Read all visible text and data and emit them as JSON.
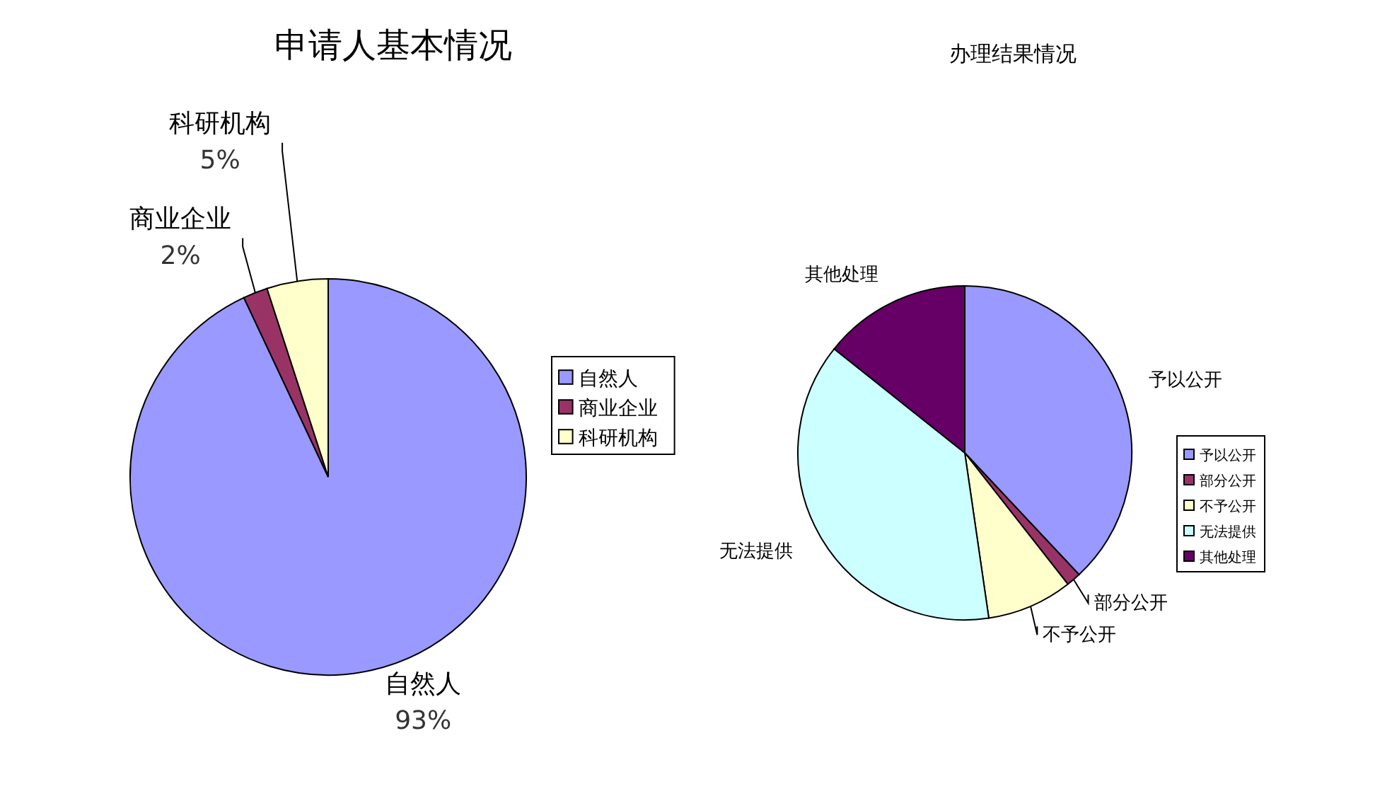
{
  "chart_data": [
    {
      "type": "pie",
      "title": "申请人基本情况",
      "categories": [
        "自然人",
        "商业企业",
        "科研机构"
      ],
      "values": [
        93,
        2,
        5
      ],
      "colors": [
        "#9999ff",
        "#993366",
        "#ffffcc"
      ],
      "value_labels": [
        "93%",
        "2%",
        "5%"
      ],
      "legend": "right"
    },
    {
      "type": "pie",
      "title": "办理结果情况",
      "categories": [
        "予以公开",
        "部分公开",
        "不予公开",
        "无法提供",
        "其他处理"
      ],
      "values": [
        38,
        1.4,
        8.3,
        38,
        14.3
      ],
      "colors": [
        "#9999ff",
        "#993366",
        "#ffffcc",
        "#ccffff",
        "#660066"
      ],
      "legend": "right"
    }
  ]
}
